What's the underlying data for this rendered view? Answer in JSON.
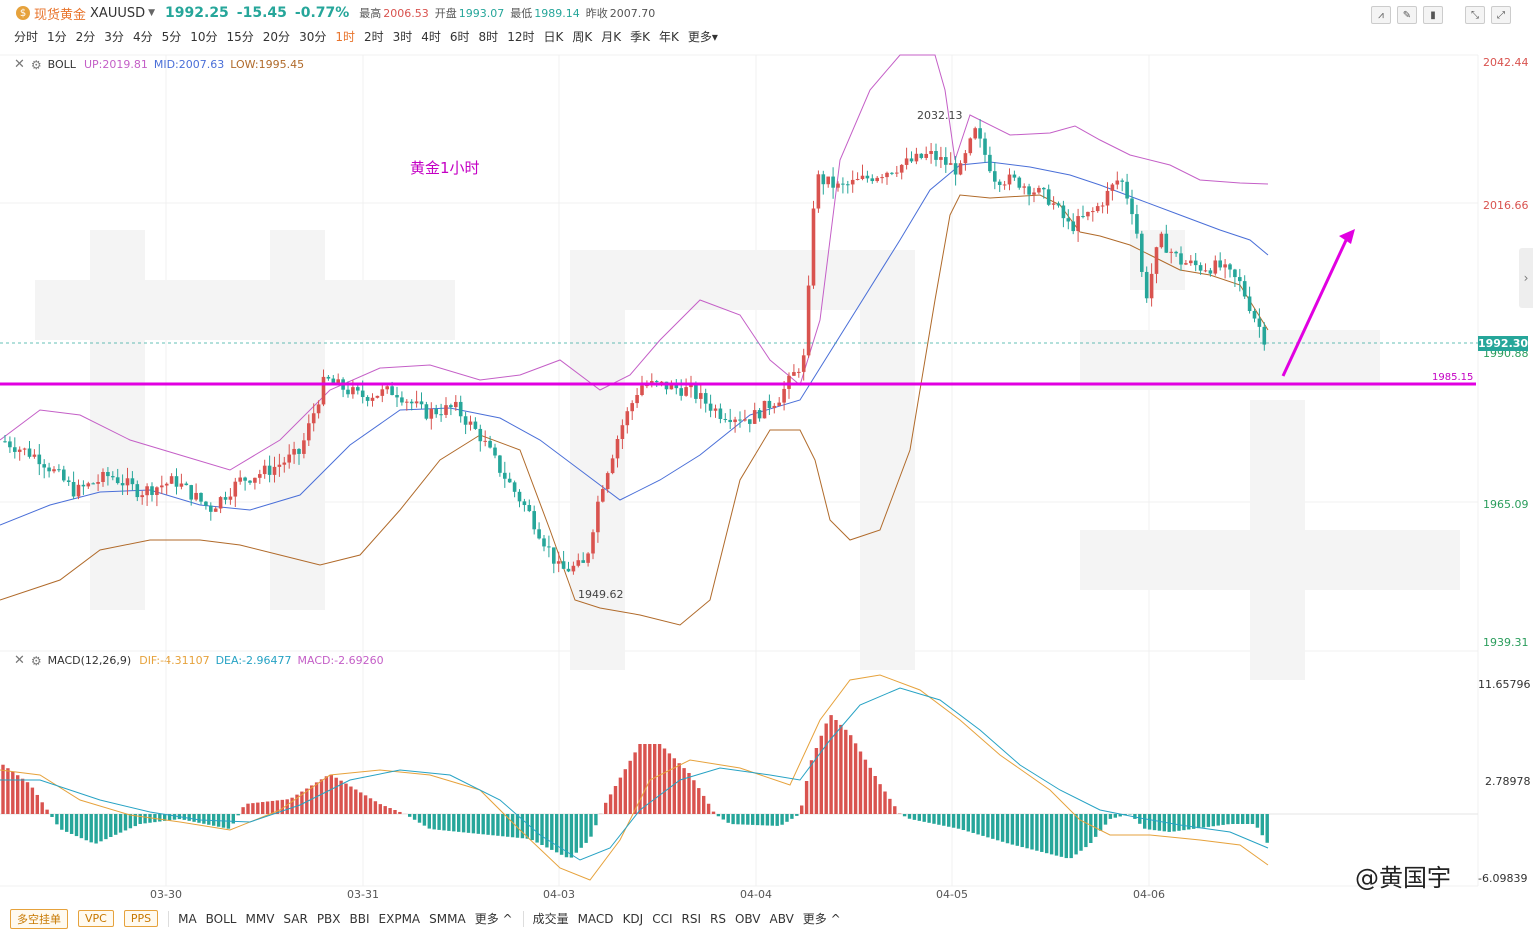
{
  "header": {
    "name": "现货黄金",
    "symbol": "XAUUSD",
    "price": "1992.25",
    "change": "-15.45",
    "change_pct": "-0.77%",
    "high_label": "最高",
    "high": "2006.53",
    "open_label": "开盘",
    "open": "1993.07",
    "low_label": "最低",
    "low": "1989.14",
    "prev_label": "昨收",
    "prev": "2007.70"
  },
  "periods": [
    "分时",
    "1分",
    "2分",
    "3分",
    "4分",
    "5分",
    "10分",
    "15分",
    "20分",
    "30分",
    "1时",
    "2时",
    "3时",
    "4时",
    "6时",
    "8时",
    "12时",
    "日K",
    "周K",
    "月K",
    "季K",
    "年K",
    "更多"
  ],
  "active_period": "1时",
  "boll": {
    "name": "BOLL",
    "up": "UP:2019.81",
    "mid": "MID:2007.63",
    "low": "LOW:1995.45"
  },
  "macd": {
    "name": "MACD(12,26,9)",
    "dif": "DIF:-4.31107",
    "dea": "DEA:-2.96477",
    "macd": "MACD:-2.69260"
  },
  "price_axis": {
    "top": "2042.44",
    "p2": "2016.66",
    "p3": "1990.88",
    "p4": "1965.09",
    "bottom": "1939.31"
  },
  "current_price_tag": "1992.30",
  "support_level": "1985.15",
  "macd_axis": {
    "top": "11.65796",
    "mid": "2.78978",
    "bottom": "-6.09839"
  },
  "annotation": "黄金1小时",
  "high_mark": "2032.13",
  "low_mark": "1949.62",
  "dates": [
    "03-30",
    "03-31",
    "04-03",
    "04-04",
    "04-05",
    "04-06"
  ],
  "footer": {
    "buttons": [
      "多空挂单",
      "VPC",
      "PPS"
    ],
    "main_indicators": [
      "MA",
      "BOLL",
      "MMV",
      "SAR",
      "PBX",
      "BBI",
      "EXPMA",
      "SMMA",
      "更多 ^"
    ],
    "sub_indicators": [
      "成交量",
      "MACD",
      "KDJ",
      "CCI",
      "RSI",
      "RS",
      "OBV",
      "ABV",
      "更多 ^"
    ]
  },
  "watermark": "@黄国宇",
  "colors": {
    "up": "#d9534f",
    "down": "#26a69a",
    "boll_up": "#c45fc7",
    "boll_mid": "#4a6fd8",
    "boll_low": "#b06a2a",
    "line": "#e100e1"
  }
}
